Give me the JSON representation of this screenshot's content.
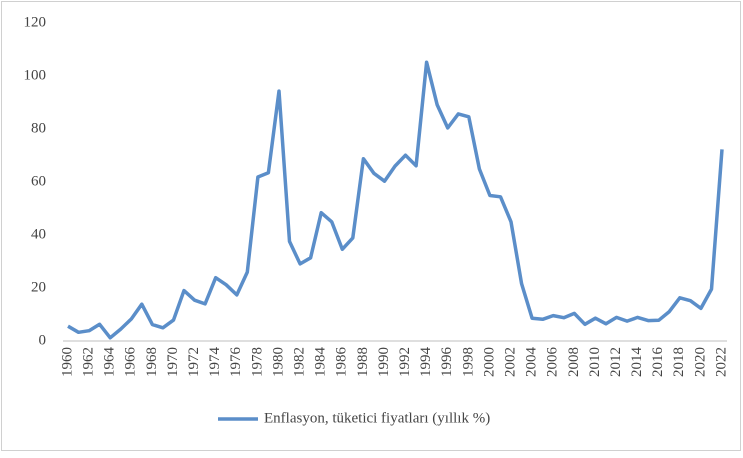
{
  "chart_data": {
    "type": "line",
    "categories": [
      "1960",
      null,
      "1962",
      null,
      "1964",
      null,
      "1966",
      null,
      "1968",
      null,
      "1970",
      null,
      "1972",
      null,
      "1974",
      null,
      "1976",
      null,
      "1978",
      null,
      "1980",
      null,
      "1982",
      null,
      "1984",
      null,
      "1986",
      null,
      "1988",
      null,
      "1990",
      null,
      "1992",
      null,
      "1994",
      null,
      "1996",
      null,
      "1998",
      null,
      "2000",
      null,
      "2002",
      null,
      "2004",
      null,
      "2006",
      null,
      "2008",
      null,
      "2010",
      null,
      "2012",
      null,
      "2014",
      null,
      "2016",
      null,
      "2018",
      null,
      "2020",
      null,
      "2022"
    ],
    "series": [
      {
        "name": "Enflasyon, tüketici fiyatları (yıllık %)",
        "color": "#5b8ec9",
        "values": [
          5.6,
          3.3,
          3.9,
          6.3,
          1.2,
          4.5,
          8.3,
          13.9,
          6.2,
          5.0,
          7.9,
          19.0,
          15.4,
          14.0,
          23.9,
          21.2,
          17.4,
          26.0,
          61.9,
          63.5,
          94.3,
          37.6,
          29.1,
          31.4,
          48.4,
          45.0,
          34.6,
          38.9,
          68.8,
          63.3,
          60.3,
          66.0,
          70.1,
          66.1,
          105.2,
          89.1,
          80.4,
          85.7,
          84.6,
          64.9,
          54.9,
          54.4,
          45.0,
          21.6,
          8.6,
          8.2,
          9.6,
          8.8,
          10.4,
          6.3,
          8.6,
          6.5,
          8.9,
          7.5,
          8.9,
          7.7,
          7.8,
          11.1,
          16.3,
          15.2,
          12.3,
          19.6,
          72.3
        ]
      }
    ],
    "ylim": [
      0,
      120
    ],
    "yticks": [
      0,
      20,
      40,
      60,
      80,
      100,
      120
    ],
    "grid": false,
    "legend": "bottom"
  }
}
